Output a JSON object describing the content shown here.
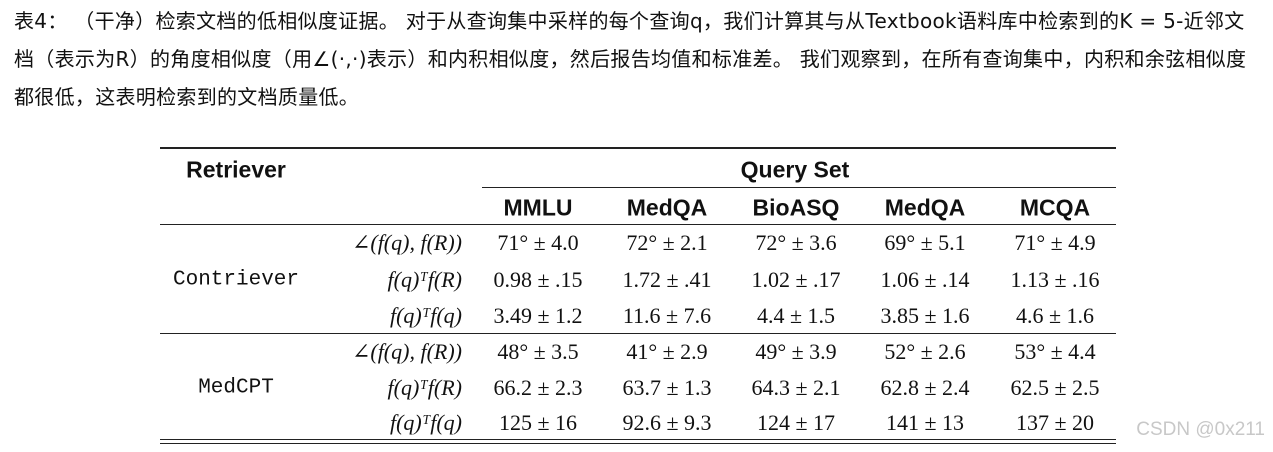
{
  "caption": "表4： （干净）检索文档的低相似度证据。 对于从查询集中采样的每个查询q，我们计算其与从Textbook语料库中检索到的K = 5-近邻文档（表示为R）的角度相似度（用∠(·,·)表示）和内积相似度，然后报告均值和标准差。 我们观察到，在所有查询集中，内积和余弦相似度都很低，这表明检索到的文档质量低。",
  "table": {
    "header": {
      "retriever": "Retriever",
      "query_set": "Query Set",
      "columns": [
        "MMLU",
        "MedQA",
        "BioASQ",
        "MedQA",
        "MCQA"
      ]
    },
    "groups": [
      {
        "retriever": "Contriever",
        "rows": [
          {
            "metric": "∠(f(q), f(R))",
            "cells": [
              "71° ± 4.0",
              "72° ± 2.1",
              "72° ± 3.6",
              "69° ± 5.1",
              "71° ± 4.9"
            ]
          },
          {
            "metric": "f(q)ᵀf(R)",
            "cells": [
              "0.98 ± .15",
              "1.72 ± .41",
              "1.02 ± .17",
              "1.06 ± .14",
              "1.13 ± .16"
            ]
          },
          {
            "metric": "f(q)ᵀf(q)",
            "cells": [
              "3.49 ± 1.2",
              "11.6 ± 7.6",
              "4.4 ± 1.5",
              "3.85 ± 1.6",
              "4.6 ± 1.6"
            ]
          }
        ]
      },
      {
        "retriever": "MedCPT",
        "rows": [
          {
            "metric": "∠(f(q), f(R))",
            "cells": [
              "48° ± 3.5",
              "41° ± 2.9",
              "49° ± 3.9",
              "52° ± 2.6",
              "53° ± 4.4"
            ]
          },
          {
            "metric": "f(q)ᵀf(R)",
            "cells": [
              "66.2 ± 2.3",
              "63.7 ± 1.3",
              "64.3 ± 2.1",
              "62.8 ± 2.4",
              "62.5 ± 2.5"
            ]
          },
          {
            "metric": "f(q)ᵀf(q)",
            "cells": [
              "125 ± 16",
              "92.6 ± 9.3",
              "124 ± 17",
              "141 ± 13",
              "137 ± 20"
            ]
          }
        ]
      }
    ]
  },
  "watermark": "CSDN @0x211"
}
